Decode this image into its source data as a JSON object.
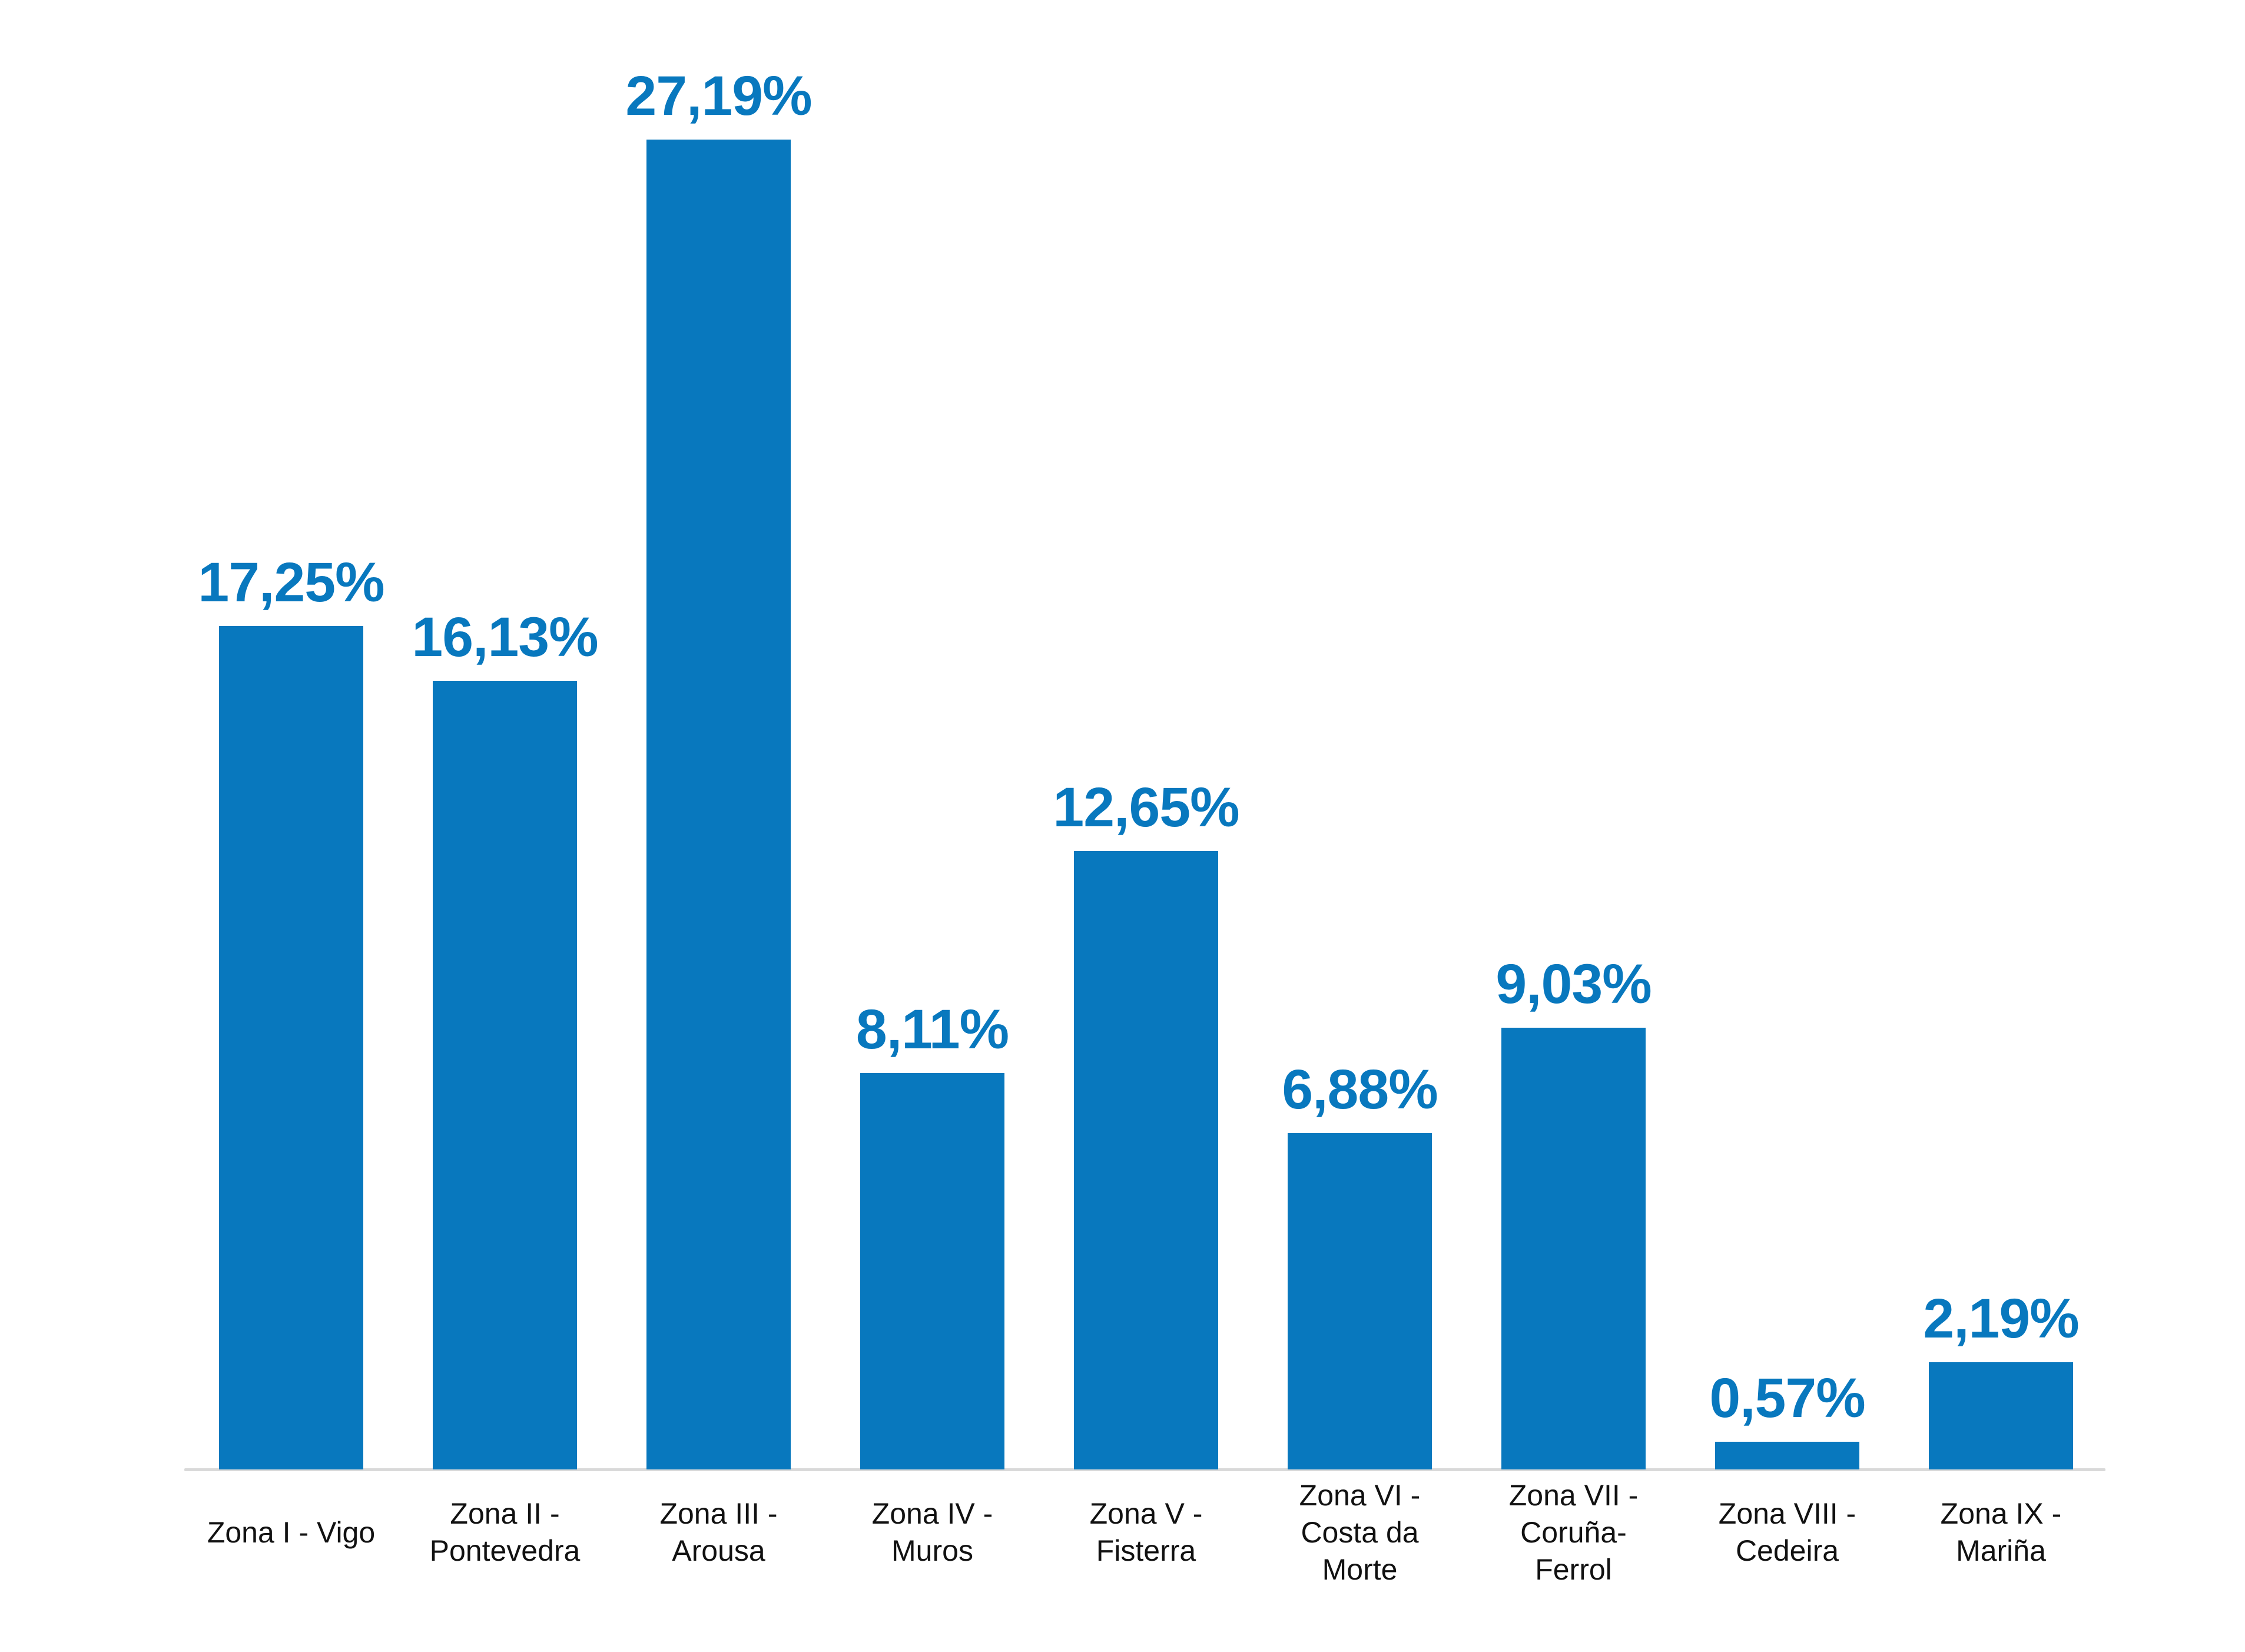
{
  "chart_data": {
    "type": "bar",
    "title": "",
    "xlabel": "",
    "ylabel": "",
    "categories": [
      "Zona I - Vigo",
      "Zona II - Pontevedra",
      "Zona III - Arousa",
      "Zona IV - Muros",
      "Zona V - Fisterra",
      "Zona VI - Costa da Morte",
      "Zona VII - Coruña-Ferrol",
      "Zona VIII - Cedeira",
      "Zona IX - Mariña"
    ],
    "category_lines": [
      [
        "Zona I - Vigo"
      ],
      [
        "Zona II -",
        "Pontevedra"
      ],
      [
        "Zona III -",
        "Arousa"
      ],
      [
        "Zona IV -",
        "Muros"
      ],
      [
        "Zona V -",
        "Fisterra"
      ],
      [
        "Zona VI -",
        "Costa da",
        "Morte"
      ],
      [
        "Zona VII -",
        "Coruña-",
        "Ferrol"
      ],
      [
        "Zona VIII -",
        "Cedeira"
      ],
      [
        "Zona IX -",
        "Mariña"
      ]
    ],
    "values": [
      17.25,
      16.13,
      27.19,
      8.11,
      12.65,
      6.88,
      9.03,
      0.57,
      2.19
    ],
    "value_labels": [
      "17,25%",
      "16,13%",
      "27,19%",
      "8,11%",
      "12,65%",
      "6,88%",
      "9,03%",
      "0,57%",
      "2,19%"
    ],
    "ylim": [
      0,
      28
    ],
    "grid": false,
    "legend": "none",
    "bar_color": "#0878BE",
    "value_label_color": "#0878BE",
    "category_label_color": "#111111",
    "axis_line_color": "#D9D9D9"
  }
}
